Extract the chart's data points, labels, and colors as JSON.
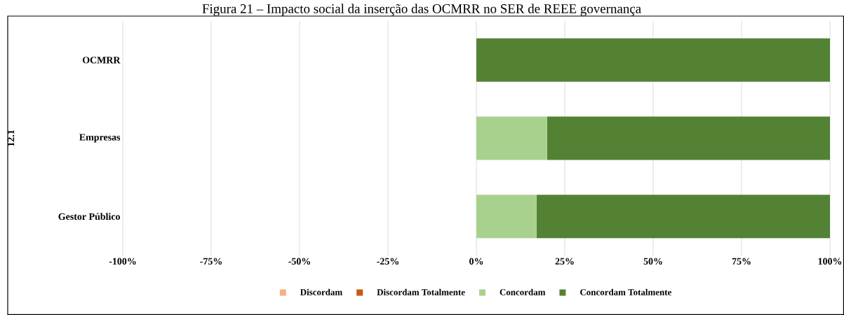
{
  "chart_data": {
    "type": "bar",
    "orientation": "horizontal",
    "stacked": true,
    "title": "Figura 21 – Impacto social da inserção das OCMRR no SER de REEE governança",
    "ylabel": "12.1",
    "categories": [
      "OCMRR",
      "Empresas",
      "Gestor Público"
    ],
    "series": [
      {
        "name": "Discordam",
        "color": "#f4b183",
        "values": [
          0,
          0,
          0
        ]
      },
      {
        "name": "Discordam Totalmente",
        "color": "#c55a11",
        "values": [
          0,
          0,
          0
        ]
      },
      {
        "name": "Concordam",
        "color": "#a9d18e",
        "values": [
          0,
          20,
          17
        ]
      },
      {
        "name": "Concordam Totalmente",
        "color": "#548235",
        "values": [
          100,
          80,
          83
        ]
      }
    ],
    "xlim": [
      -100,
      100
    ],
    "xticks": [
      {
        "value": -100,
        "label": "-100%"
      },
      {
        "value": -75,
        "label": "-75%"
      },
      {
        "value": -50,
        "label": "-50%"
      },
      {
        "value": -25,
        "label": "-25%"
      },
      {
        "value": 0,
        "label": "0%"
      },
      {
        "value": 25,
        "label": "25%"
      },
      {
        "value": 50,
        "label": "50%"
      },
      {
        "value": 75,
        "label": "75%"
      },
      {
        "value": 100,
        "label": "100%"
      }
    ],
    "grid": "x",
    "legend": "bottom"
  }
}
